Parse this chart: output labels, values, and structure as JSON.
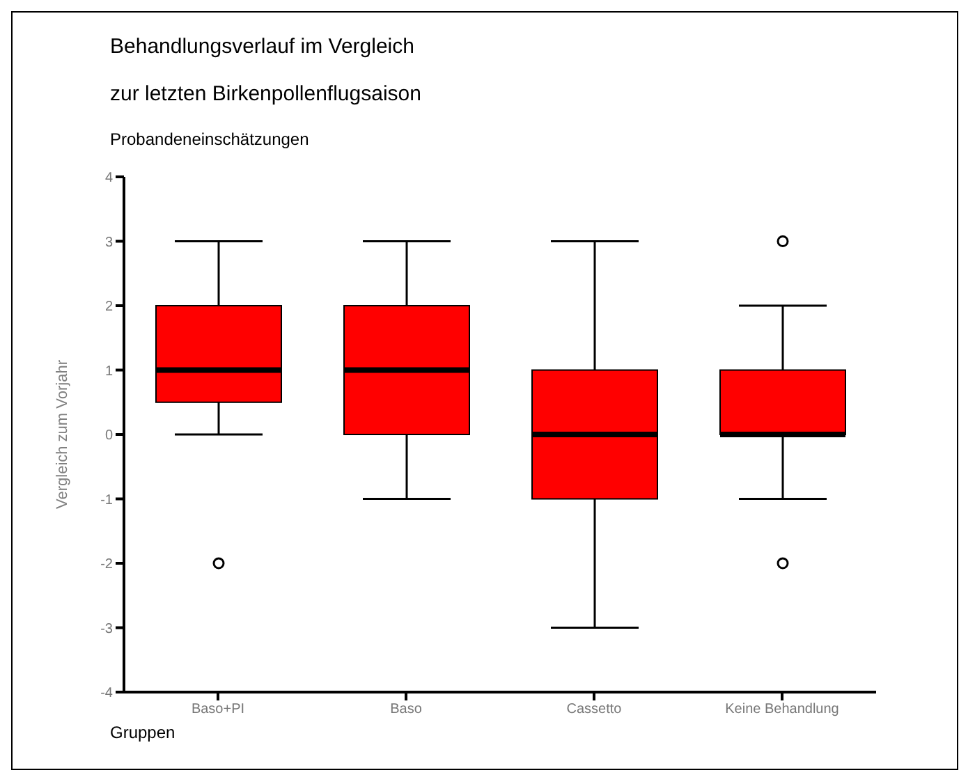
{
  "chart_data": {
    "type": "box",
    "title": "Behandlungsverlauf im Vergleich",
    "subtitle": "zur letzten Birkenpollenflugsaison",
    "annotations": [
      "Probandeneinschätzungen"
    ],
    "xlabel": "Gruppen",
    "ylabel": "Vergleich zum Vorjahr",
    "categories": [
      "Baso+PI",
      "Baso",
      "Cassetto",
      "Keine Behandlung"
    ],
    "color": "#ff0000",
    "boxes": [
      {
        "low": 0,
        "q1": 0.5,
        "median": 1,
        "q3": 2,
        "high": 3,
        "outliers": [
          -2
        ]
      },
      {
        "low": -1,
        "q1": 0,
        "median": 1,
        "q3": 2,
        "high": 3
      },
      {
        "low": -3,
        "q1": -1,
        "median": 0,
        "q3": 1,
        "high": 3
      },
      {
        "low": -1,
        "q1": 0,
        "median": 0,
        "q3": 1,
        "high": 2,
        "outliers": [
          3,
          -2
        ]
      }
    ],
    "ylim": [
      -4,
      4
    ],
    "yticks": [
      -4,
      -3,
      -2,
      -1,
      0,
      1,
      2,
      3,
      4
    ],
    "grid": false
  }
}
